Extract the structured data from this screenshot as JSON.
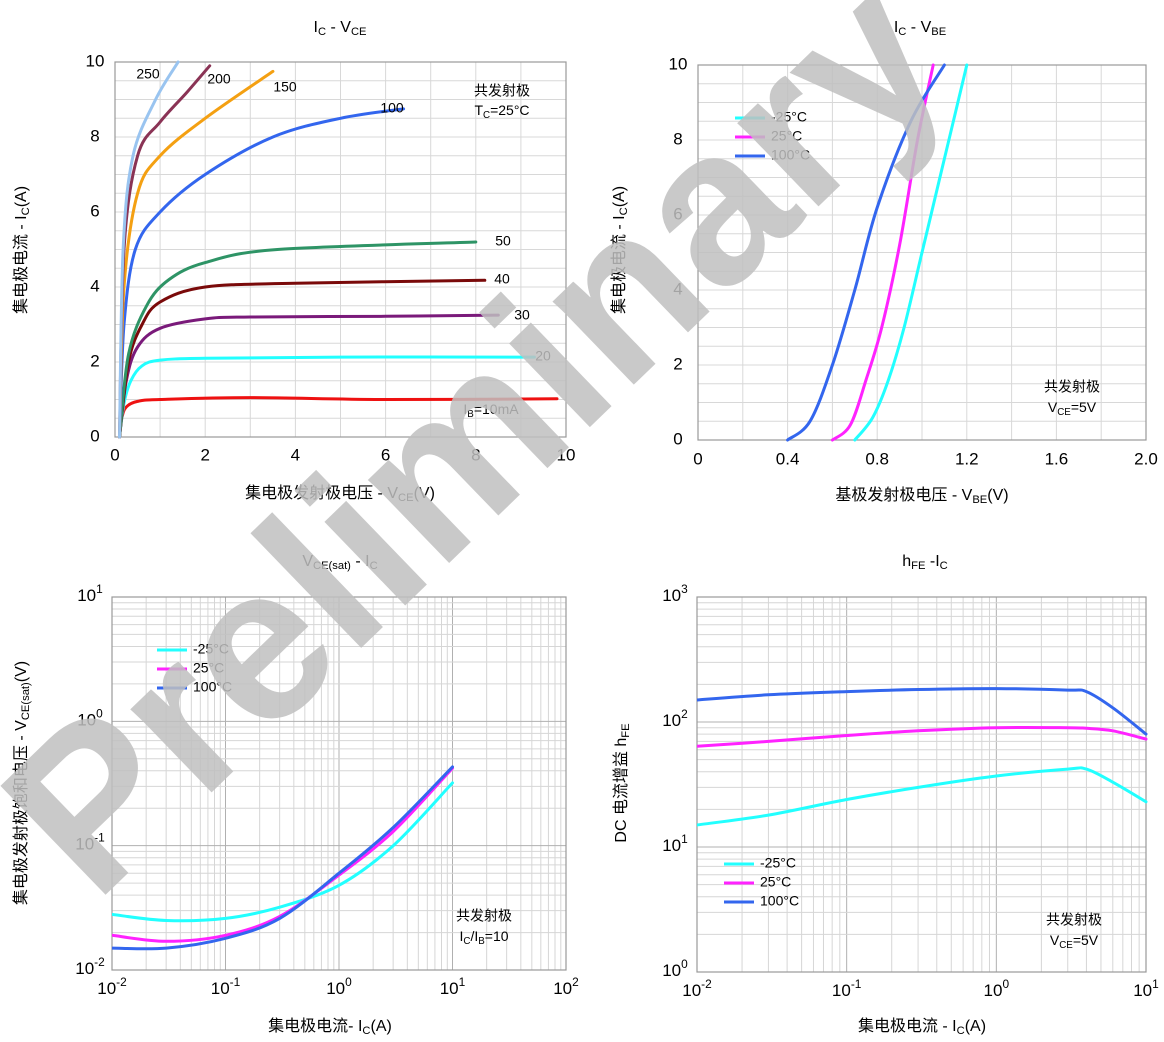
{
  "watermark": {
    "text": "Preliminary",
    "color": "#c0c0c0"
  },
  "colors": {
    "cold": "#22ffff",
    "room": "#ff22ff",
    "hot": "#3366ee",
    "ib10": "#ee1111",
    "ib20": "#22ffff",
    "ib30": "#7a1a7a",
    "ib40": "#7a0a0a",
    "ib50": "#2e9466",
    "ib100": "#3366ee",
    "ib150": "#f4a012",
    "ib200": "#8a3355",
    "ib250": "#99c4f0"
  },
  "chart_data": [
    {
      "id": "ic_vce",
      "type": "line",
      "title": "IC - VCE",
      "xlabel": "集电极发射极电压 - VCE(V)",
      "ylabel": "集电极电流 - IC(A)",
      "xlim": [
        0,
        10
      ],
      "ylim": [
        0,
        10
      ],
      "xticks": [
        0,
        2,
        4,
        6,
        8,
        10
      ],
      "yticks": [
        0,
        2,
        4,
        6,
        8,
        10
      ],
      "grid": true,
      "annotations": [
        "共发射极",
        "TC=25°C"
      ],
      "series": [
        {
          "name": "IB=10mA",
          "color_key": "ib10",
          "points": [
            [
              0.1,
              0
            ],
            [
              0.15,
              0.5
            ],
            [
              0.25,
              0.8
            ],
            [
              0.5,
              0.95
            ],
            [
              1,
              1.0
            ],
            [
              3,
              1.05
            ],
            [
              6,
              1.0
            ],
            [
              9.8,
              1.02
            ]
          ]
        },
        {
          "name": "20",
          "color_key": "ib20",
          "points": [
            [
              0.1,
              0
            ],
            [
              0.2,
              0.9
            ],
            [
              0.35,
              1.5
            ],
            [
              0.6,
              1.9
            ],
            [
              1,
              2.05
            ],
            [
              2,
              2.1
            ],
            [
              5,
              2.13
            ],
            [
              9.3,
              2.13
            ]
          ]
        },
        {
          "name": "30",
          "color_key": "ib30",
          "points": [
            [
              0.1,
              0
            ],
            [
              0.25,
              1.5
            ],
            [
              0.5,
              2.4
            ],
            [
              1,
              2.9
            ],
            [
              2,
              3.15
            ],
            [
              3,
              3.2
            ],
            [
              6,
              3.22
            ],
            [
              8.5,
              3.25
            ]
          ]
        },
        {
          "name": "40",
          "color_key": "ib40",
          "points": [
            [
              0.1,
              0
            ],
            [
              0.3,
              2.0
            ],
            [
              0.6,
              3.0
            ],
            [
              1,
              3.6
            ],
            [
              2,
              4.0
            ],
            [
              4,
              4.1
            ],
            [
              8.2,
              4.18
            ]
          ]
        },
        {
          "name": "50",
          "color_key": "ib50",
          "points": [
            [
              0.1,
              0
            ],
            [
              0.3,
              2.2
            ],
            [
              0.7,
              3.5
            ],
            [
              1.2,
              4.2
            ],
            [
              2,
              4.65
            ],
            [
              3.6,
              5.0
            ],
            [
              8,
              5.2
            ]
          ]
        },
        {
          "name": "100",
          "color_key": "ib100",
          "points": [
            [
              0.1,
              0
            ],
            [
              0.2,
              3.0
            ],
            [
              0.45,
              5.0
            ],
            [
              1,
              6.0
            ],
            [
              2,
              7.0
            ],
            [
              3.5,
              8.0
            ],
            [
              5,
              8.5
            ],
            [
              6.4,
              8.75
            ]
          ]
        },
        {
          "name": "150",
          "color_key": "ib150",
          "points": [
            [
              0.1,
              0
            ],
            [
              0.2,
              4.0
            ],
            [
              0.5,
              6.5
            ],
            [
              1,
              7.5
            ],
            [
              2,
              8.5
            ],
            [
              3.5,
              9.75
            ]
          ]
        },
        {
          "name": "200",
          "color_key": "ib200",
          "points": [
            [
              0.1,
              0
            ],
            [
              0.2,
              5.0
            ],
            [
              0.5,
              7.5
            ],
            [
              1,
              8.4
            ],
            [
              1.6,
              9.2
            ],
            [
              2.1,
              9.9
            ]
          ]
        },
        {
          "name": "250",
          "color_key": "ib250",
          "points": [
            [
              0.1,
              0
            ],
            [
              0.18,
              5.0
            ],
            [
              0.4,
              7.5
            ],
            [
              0.9,
              9.0
            ],
            [
              1.4,
              10
            ]
          ]
        }
      ]
    },
    {
      "id": "ic_vbe",
      "type": "line",
      "title": "IC - VBE",
      "xlabel": "基极发射极电压 - VBE(V)",
      "ylabel": "集电极电流 - IC(A)",
      "xlim": [
        0,
        2.0
      ],
      "ylim": [
        0,
        10
      ],
      "xticks": [
        "0",
        "0.4",
        "0.8",
        "1.2",
        "1.6",
        "2.0"
      ],
      "yticks": [
        0,
        2,
        4,
        6,
        8,
        10
      ],
      "grid": true,
      "legend": "top-left",
      "annotations": [
        "共发射极",
        "VCE=5V"
      ],
      "series": [
        {
          "name": "-25°C",
          "color_key": "cold",
          "points": [
            [
              0.7,
              0
            ],
            [
              0.78,
              0.6
            ],
            [
              0.85,
              1.6
            ],
            [
              0.92,
              3.0
            ],
            [
              1.0,
              5.0
            ],
            [
              1.08,
              7.0
            ],
            [
              1.2,
              10
            ]
          ]
        },
        {
          "name": "25°C",
          "color_key": "room",
          "points": [
            [
              0.6,
              0
            ],
            [
              0.68,
              0.4
            ],
            [
              0.75,
              1.6
            ],
            [
              0.82,
              3.0
            ],
            [
              0.9,
              5.2
            ],
            [
              0.98,
              8.0
            ],
            [
              1.05,
              10
            ]
          ]
        },
        {
          "name": "100°C",
          "color_key": "hot",
          "points": [
            [
              0.4,
              0
            ],
            [
              0.5,
              0.5
            ],
            [
              0.6,
              2.0
            ],
            [
              0.7,
              4.0
            ],
            [
              0.8,
              6.2
            ],
            [
              0.95,
              8.5
            ],
            [
              1.1,
              10
            ]
          ]
        }
      ]
    },
    {
      "id": "vcesat_ic",
      "type": "line",
      "title": "VCE(sat) - IC",
      "xlabel": "集电极电流- IC(A)",
      "ylabel": "集电极发射极饱和电压 - VCE(sat)(V)",
      "xscale": "log",
      "yscale": "log",
      "xlim": [
        0.01,
        100
      ],
      "ylim": [
        0.01,
        10
      ],
      "grid": true,
      "legend": "top-left",
      "annotations": [
        "共发射极",
        "IC/IB=10"
      ],
      "series": [
        {
          "name": "-25°C",
          "color_key": "cold",
          "points": [
            [
              0.01,
              0.028
            ],
            [
              0.03,
              0.025
            ],
            [
              0.1,
              0.026
            ],
            [
              0.3,
              0.032
            ],
            [
              1,
              0.048
            ],
            [
              3,
              0.1
            ],
            [
              10,
              0.32
            ]
          ]
        },
        {
          "name": "25°C",
          "color_key": "room",
          "points": [
            [
              0.01,
              0.019
            ],
            [
              0.03,
              0.017
            ],
            [
              0.1,
              0.019
            ],
            [
              0.3,
              0.027
            ],
            [
              1,
              0.058
            ],
            [
              3,
              0.13
            ],
            [
              10,
              0.42
            ]
          ]
        },
        {
          "name": "100°C",
          "color_key": "hot",
          "points": [
            [
              0.01,
              0.015
            ],
            [
              0.03,
              0.015
            ],
            [
              0.1,
              0.018
            ],
            [
              0.3,
              0.026
            ],
            [
              1,
              0.06
            ],
            [
              3,
              0.14
            ],
            [
              10,
              0.43
            ]
          ]
        }
      ]
    },
    {
      "id": "hfe_ic",
      "type": "line",
      "title": "hFE -IC",
      "xlabel": "集电极电流 - IC(A)",
      "ylabel": "DC 电流增益 hFE",
      "xscale": "log",
      "yscale": "log",
      "xlim": [
        0.01,
        10
      ],
      "ylim": [
        1,
        1000
      ],
      "grid": true,
      "legend": "bottom-left",
      "annotations": [
        "共发射极",
        "VCE=5V"
      ],
      "series": [
        {
          "name": "-25°C",
          "color_key": "cold",
          "points": [
            [
              0.01,
              15
            ],
            [
              0.03,
              18
            ],
            [
              0.1,
              24
            ],
            [
              0.3,
              30
            ],
            [
              1,
              37
            ],
            [
              3,
              42
            ],
            [
              4,
              42
            ],
            [
              6,
              33
            ],
            [
              10,
              23
            ]
          ]
        },
        {
          "name": "25°C",
          "color_key": "room",
          "points": [
            [
              0.01,
              64
            ],
            [
              0.03,
              70
            ],
            [
              0.1,
              78
            ],
            [
              0.3,
              85
            ],
            [
              1,
              90
            ],
            [
              3,
              90
            ],
            [
              4,
              89
            ],
            [
              6,
              85
            ],
            [
              10,
              73
            ]
          ]
        },
        {
          "name": "100°C",
          "color_key": "hot",
          "points": [
            [
              0.01,
              150
            ],
            [
              0.03,
              165
            ],
            [
              0.1,
              175
            ],
            [
              0.3,
              182
            ],
            [
              1,
              185
            ],
            [
              3,
              180
            ],
            [
              4,
              175
            ],
            [
              6,
              130
            ],
            [
              10,
              80
            ]
          ]
        }
      ]
    }
  ]
}
